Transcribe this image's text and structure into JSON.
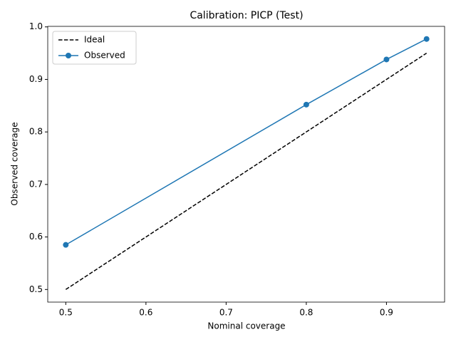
{
  "chart_data": {
    "type": "line",
    "title": "Calibration: PICP (Test)",
    "xlabel": "Nominal coverage",
    "ylabel": "Observed coverage",
    "x": [
      0.5,
      0.8,
      0.9,
      0.95
    ],
    "series": [
      {
        "name": "Ideal",
        "color": "#000000",
        "linestyle": "dashed",
        "marker": "none",
        "values": [
          0.5,
          0.8,
          0.9,
          0.95
        ]
      },
      {
        "name": "Observed",
        "color": "#1f77b4",
        "linestyle": "solid",
        "marker": "circle",
        "values": [
          0.585,
          0.852,
          0.938,
          0.977
        ]
      }
    ],
    "xlim": [
      0.4775,
      0.9725
    ],
    "ylim": [
      0.476,
      1.001
    ],
    "xticks": [
      0.5,
      0.6,
      0.7,
      0.8,
      0.9
    ],
    "yticks": [
      0.5,
      0.6,
      0.7,
      0.8,
      0.9,
      {
        "value": 1,
        "label": "1.0"
      }
    ],
    "grid": false,
    "legend": "upper left"
  }
}
